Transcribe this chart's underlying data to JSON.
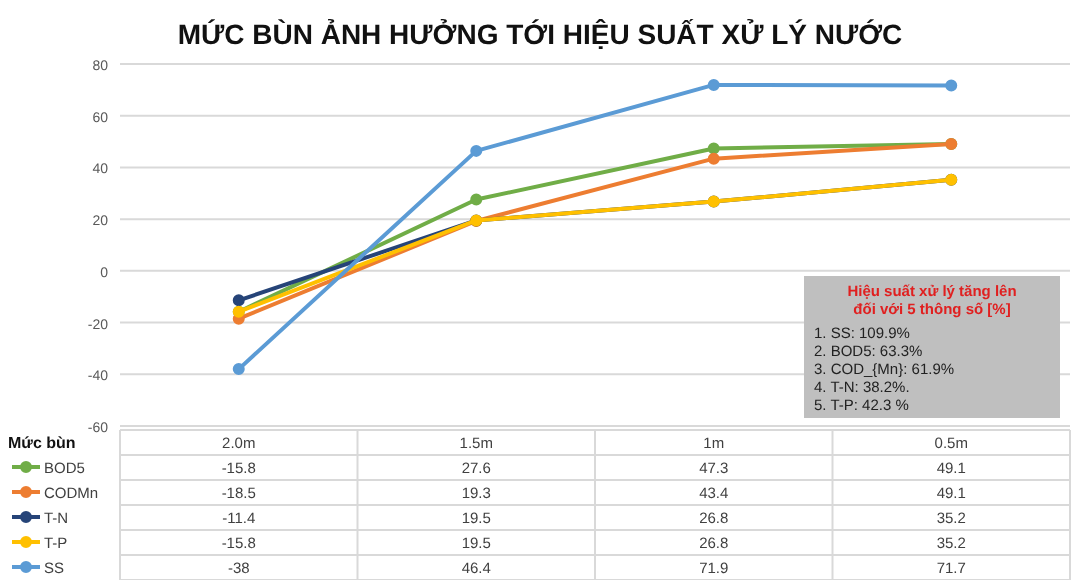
{
  "chart_data": {
    "type": "line",
    "title": "MỨC BÙN ẢNH HƯỞNG TỚI HIỆU SUẤT XỬ LÝ NƯỚC",
    "xlabel": "Mức bùn",
    "categories": [
      "2.0m",
      "1.5m",
      "1m",
      "0.5m"
    ],
    "series": [
      {
        "name": "BOD5",
        "color": "#70ad47",
        "values": [
          -15.8,
          27.6,
          47.3,
          49.1
        ]
      },
      {
        "name": "CODMn",
        "color": "#ed7d31",
        "values": [
          -18.5,
          19.3,
          43.4,
          49.1
        ]
      },
      {
        "name": "T-N",
        "color": "#264478",
        "values": [
          -11.4,
          19.5,
          26.8,
          35.2
        ]
      },
      {
        "name": "T-P",
        "color": "#ffc000",
        "values": [
          -15.8,
          19.5,
          26.8,
          35.2
        ]
      },
      {
        "name": "SS",
        "color": "#5b9bd5",
        "values": [
          -38,
          46.4,
          71.9,
          71.7
        ]
      }
    ],
    "ylim": [
      -60,
      80
    ],
    "yticks": [
      -60,
      -40,
      -20,
      0,
      20,
      40,
      60,
      80
    ],
    "grid": "y",
    "marker": "circle",
    "data_labels": true,
    "legend": "bottom",
    "annotations": [
      "Hiệu suất xử lý tăng lên đối với 5 thông số [%]",
      "1. SS: 109.9%",
      "2. BOD5: 63.3%",
      "3. COD_{Mn}: 61.9%",
      "4. T-N: 38.2%.",
      "5. T-P: 42.3 %"
    ]
  }
}
